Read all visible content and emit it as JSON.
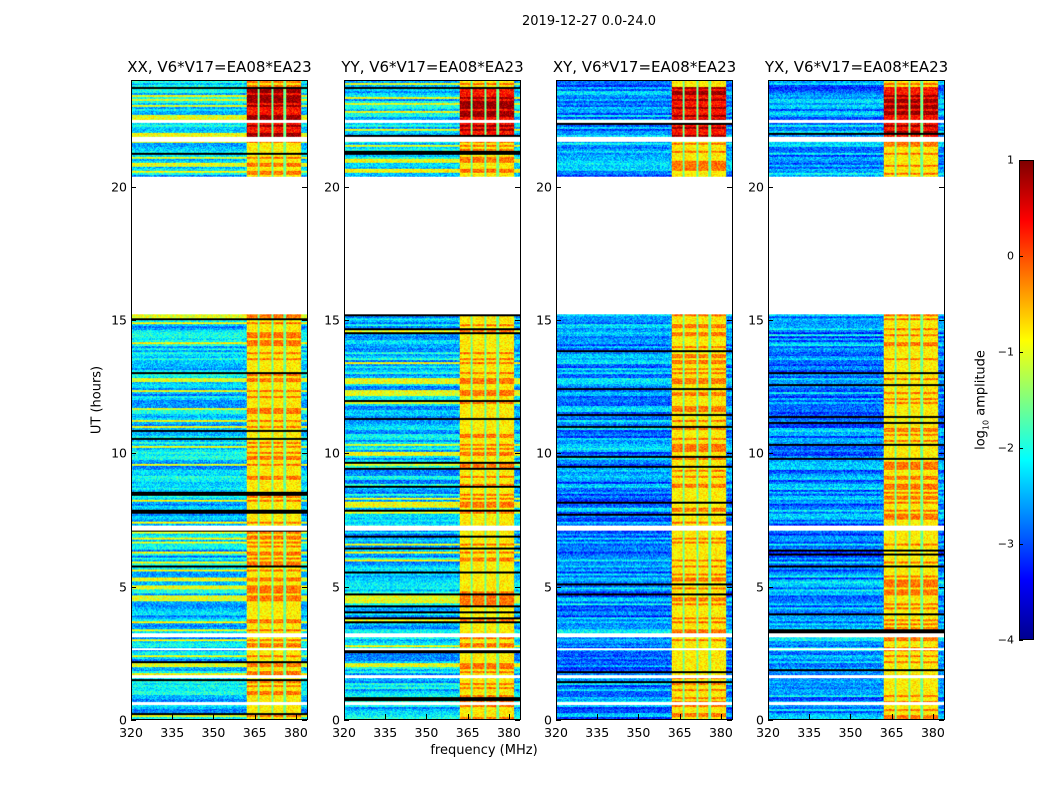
{
  "chart_data": {
    "type": "heatmap",
    "title": "2019-12-27 0.0-24.0",
    "xlabel": "frequency (MHz)",
    "ylabel": "UT (hours)",
    "xlim": [
      320,
      384.4
    ],
    "ylim": [
      0,
      24
    ],
    "xticks": [
      320,
      335,
      350,
      365,
      380
    ],
    "yticks": [
      0,
      5,
      10,
      15,
      20
    ],
    "panels": [
      {
        "title": "XX, V6*V17=EA08*EA23"
      },
      {
        "title": "YY, V6*V17=EA08*EA23"
      },
      {
        "title": "XY, V6*V17=EA08*EA23"
      },
      {
        "title": "YX, V6*V17=EA08*EA23"
      }
    ],
    "flagged_time_ranges_hours": [
      [
        15.25,
        20.4
      ],
      [
        21.75,
        21.9
      ],
      [
        22.45,
        22.55
      ],
      [
        7.1,
        7.3
      ],
      [
        3.1,
        3.25
      ],
      [
        2.6,
        2.7
      ],
      [
        1.55,
        1.65
      ],
      [
        0.55,
        0.65
      ]
    ],
    "bright_band_mhz": [
      362,
      382
    ],
    "colorbar": {
      "label": "log10 amplitude",
      "label_main": "log",
      "label_sub": "10",
      "label_rest": " amplitude",
      "range": [
        -4,
        1
      ],
      "ticks": [
        1,
        0,
        -1,
        -2,
        -3,
        -4
      ],
      "tick_labels": [
        "1",
        "0",
        "−1",
        "−2",
        "−3",
        "−4"
      ],
      "colormap": "jet"
    }
  }
}
